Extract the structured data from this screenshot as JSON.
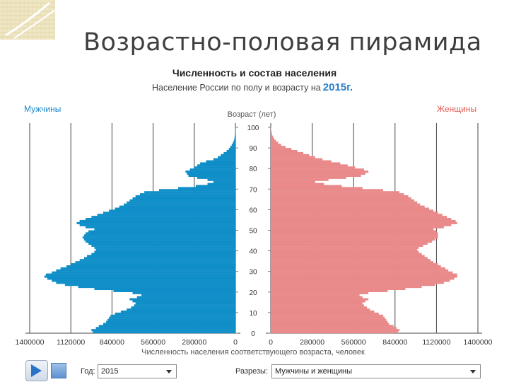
{
  "slide": {
    "title": "Возрастно-половая пирамида"
  },
  "chart_header": {
    "subtitle": "Численность и состав населения",
    "caption": "Население России по полу и возрасту на",
    "year": "2015г."
  },
  "legend": {
    "men": "Мужчины",
    "women": "Женщины"
  },
  "controls": {
    "year_label": "Год:",
    "year_value": "2015",
    "slice_label": "Разрезы:",
    "slice_value": "Мужчины и женщины"
  },
  "colors": {
    "men": "#0f8ec8",
    "women": "#e9898a",
    "accent": "#2a7fc9"
  },
  "chart_data": {
    "type": "bar",
    "orientation": "horizontal-pyramid",
    "y_axis_label": "Возраст (лет)",
    "x_axis_label": "Численность населения соответствующего возраста, человек",
    "y_ticks": [
      0,
      10,
      20,
      30,
      40,
      50,
      60,
      70,
      80,
      90,
      100
    ],
    "x_ticks_left": [
      "1400000",
      "1120000",
      "840000",
      "560000",
      "280000",
      "0"
    ],
    "x_ticks_right": [
      "0",
      "280000",
      "560000",
      "840000",
      "1120000",
      "1400000"
    ],
    "xlim": [
      0,
      1400000
    ],
    "ylim": [
      0,
      100
    ],
    "grid": true,
    "ages": [
      0,
      1,
      2,
      3,
      4,
      5,
      6,
      7,
      8,
      9,
      10,
      11,
      12,
      13,
      14,
      15,
      16,
      17,
      18,
      19,
      20,
      21,
      22,
      23,
      24,
      25,
      26,
      27,
      28,
      29,
      30,
      31,
      32,
      33,
      34,
      35,
      36,
      37,
      38,
      39,
      40,
      41,
      42,
      43,
      44,
      45,
      46,
      47,
      48,
      49,
      50,
      51,
      52,
      53,
      54,
      55,
      56,
      57,
      58,
      59,
      60,
      61,
      62,
      63,
      64,
      65,
      66,
      67,
      68,
      69,
      70,
      71,
      72,
      73,
      74,
      75,
      76,
      77,
      78,
      79,
      80,
      81,
      82,
      83,
      84,
      85,
      86,
      87,
      88,
      89,
      90,
      91,
      92,
      93,
      94,
      95,
      96,
      97,
      98,
      99,
      100
    ],
    "series": [
      {
        "name": "Мужчины",
        "values": [
          970000,
          980000,
          950000,
          930000,
          900000,
          880000,
          870000,
          860000,
          850000,
          820000,
          780000,
          740000,
          710000,
          690000,
          680000,
          700000,
          720000,
          670000,
          640000,
          700000,
          830000,
          960000,
          1070000,
          1160000,
          1220000,
          1250000,
          1280000,
          1300000,
          1290000,
          1250000,
          1220000,
          1190000,
          1150000,
          1120000,
          1090000,
          1060000,
          1030000,
          1010000,
          980000,
          960000,
          950000,
          960000,
          980000,
          1000000,
          1020000,
          1030000,
          1040000,
          1030000,
          1020000,
          1000000,
          960000,
          1020000,
          1060000,
          1080000,
          1060000,
          1020000,
          980000,
          940000,
          900000,
          860000,
          820000,
          790000,
          760000,
          740000,
          720000,
          700000,
          680000,
          650000,
          620000,
          520000,
          390000,
          270000,
          190000,
          150000,
          190000,
          260000,
          320000,
          330000,
          340000,
          310000,
          280000,
          260000,
          240000,
          200000,
          150000,
          120000,
          100000,
          80000,
          60000,
          45000,
          35000,
          25000,
          17000,
          11000,
          7000,
          5000,
          3000,
          2000,
          1000,
          700,
          400
        ]
      },
      {
        "name": "Женщины",
        "values": [
          860000,
          870000,
          850000,
          830000,
          800000,
          790000,
          780000,
          770000,
          760000,
          730000,
          700000,
          670000,
          650000,
          630000,
          620000,
          640000,
          660000,
          620000,
          600000,
          660000,
          790000,
          910000,
          1020000,
          1110000,
          1170000,
          1210000,
          1240000,
          1260000,
          1260000,
          1230000,
          1200000,
          1180000,
          1150000,
          1130000,
          1100000,
          1080000,
          1060000,
          1040000,
          1020000,
          1000000,
          990000,
          1000000,
          1030000,
          1060000,
          1090000,
          1110000,
          1130000,
          1130000,
          1130000,
          1120000,
          1100000,
          1170000,
          1220000,
          1260000,
          1250000,
          1220000,
          1190000,
          1160000,
          1130000,
          1100000,
          1070000,
          1040000,
          1010000,
          990000,
          970000,
          950000,
          930000,
          900000,
          870000,
          760000,
          620000,
          480000,
          360000,
          300000,
          390000,
          510000,
          610000,
          640000,
          660000,
          630000,
          570000,
          520000,
          470000,
          410000,
          350000,
          300000,
          260000,
          220000,
          180000,
          140000,
          100000,
          70000,
          50000,
          35000,
          23000,
          15000,
          9000,
          6000,
          3500,
          2000,
          1000
        ]
      }
    ]
  }
}
